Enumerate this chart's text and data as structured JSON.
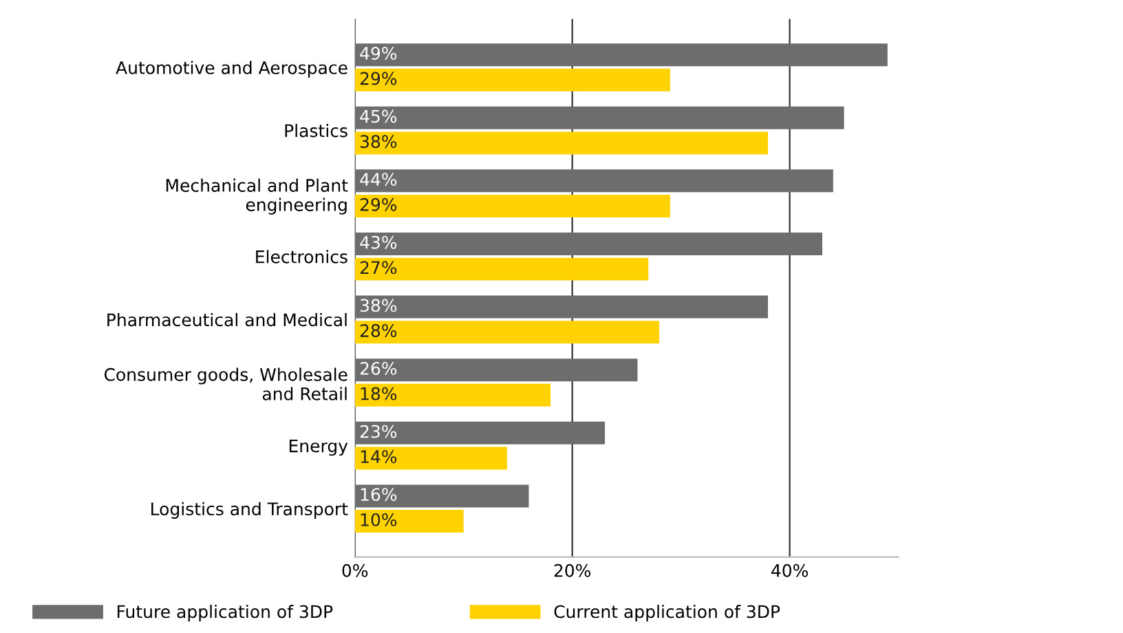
{
  "chart_data": {
    "type": "bar",
    "orientation": "horizontal",
    "categories": [
      "Automotive and Aerospace",
      "Plastics",
      "Mechanical and Plant\nengineering",
      "Electronics",
      "Pharmaceutical and Medical",
      "Consumer goods, Wholesale\nand Retail",
      "Energy",
      "Logistics and Transport"
    ],
    "series": [
      {
        "name": "Future application of 3DP",
        "color": "#6d6d6d",
        "values": [
          49,
          45,
          44,
          43,
          38,
          26,
          23,
          16
        ],
        "value_labels": [
          "49%",
          "45%",
          "44%",
          "43%",
          "38%",
          "26%",
          "23%",
          "16%"
        ]
      },
      {
        "name": "Current application of 3DP",
        "color": "#ffd200",
        "values": [
          29,
          38,
          29,
          27,
          28,
          18,
          14,
          10
        ],
        "value_labels": [
          "29%",
          "38%",
          "29%",
          "27%",
          "28%",
          "18%",
          "14%",
          "10%"
        ]
      }
    ],
    "xticks": [
      {
        "value": 0,
        "label": "0%"
      },
      {
        "value": 20,
        "label": "20%"
      },
      {
        "value": 40,
        "label": "40%"
      }
    ],
    "xlim": [
      0,
      50
    ],
    "grid": "x",
    "legend": "bottom"
  }
}
